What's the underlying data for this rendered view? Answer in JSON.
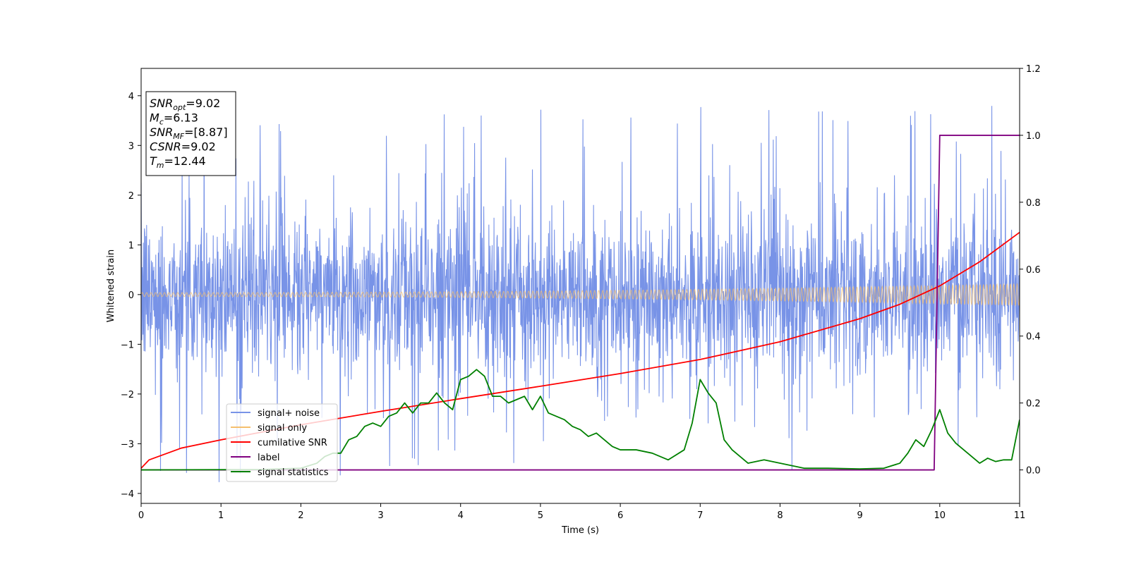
{
  "chart_data": {
    "type": "line",
    "xlabel": "Time (s)",
    "ylabel": "Whitened strain",
    "xlim": [
      0,
      11
    ],
    "ylim": [
      -4.2,
      4.55
    ],
    "y2lim": [
      -0.1,
      1.2
    ],
    "x_ticks": [
      0,
      1,
      2,
      3,
      4,
      5,
      6,
      7,
      8,
      9,
      10,
      11
    ],
    "y_ticks": [
      -4,
      -3,
      -2,
      -1,
      0,
      1,
      2,
      3,
      4
    ],
    "y2_ticks": [
      0.0,
      0.2,
      0.4,
      0.6,
      0.8,
      1.0,
      1.2
    ],
    "grid": false,
    "legend_position": "lower-left",
    "annotation": {
      "lines": [
        {
          "sym": "SNR",
          "sub": "opt",
          "value": "=9.02"
        },
        {
          "sym": "M",
          "sub": "c",
          "value": "=6.13"
        },
        {
          "sym": "SNR",
          "sub": "MF",
          "value": "=[8.87]"
        },
        {
          "sym": "CSNR",
          "sub": "",
          "value": "=9.02"
        },
        {
          "sym": "T",
          "sub": "m",
          "value": "=12.44"
        }
      ]
    },
    "series": [
      {
        "name": "signal+ noise",
        "color": "#7893e7",
        "axis": "left",
        "kind": "noise",
        "envelope_core": 1.3,
        "spike_max": 3.8,
        "spike_min": -3.8
      },
      {
        "name": "signal only",
        "color": "#f5bf6e",
        "axis": "left",
        "kind": "chirp",
        "amplitude_start": 0.04,
        "amplitude_end": 0.22
      },
      {
        "name": "cumilative SNR",
        "color": "#ff0000",
        "axis": "right",
        "x": [
          0,
          0.1,
          0.5,
          1,
          2,
          3,
          4,
          5,
          6,
          7,
          8,
          9,
          9.5,
          10,
          10.5,
          11
        ],
        "y": [
          0.005,
          0.03,
          0.065,
          0.09,
          0.135,
          0.175,
          0.213,
          0.25,
          0.288,
          0.33,
          0.383,
          0.452,
          0.495,
          0.55,
          0.622,
          0.71
        ]
      },
      {
        "name": "label",
        "color": "#800080",
        "axis": "right",
        "x": [
          0,
          9.93,
          10.0,
          11
        ],
        "y": [
          0.0,
          0.0,
          1.0,
          1.0
        ]
      },
      {
        "name": "signal statistics",
        "color": "#008000",
        "axis": "right",
        "x": [
          0,
          1.5,
          2.0,
          2.2,
          2.3,
          2.4,
          2.5,
          2.6,
          2.7,
          2.8,
          2.9,
          3.0,
          3.1,
          3.2,
          3.3,
          3.4,
          3.5,
          3.6,
          3.7,
          3.8,
          3.9,
          4.0,
          4.1,
          4.2,
          4.3,
          4.4,
          4.5,
          4.6,
          4.7,
          4.8,
          4.9,
          5.0,
          5.1,
          5.2,
          5.3,
          5.4,
          5.5,
          5.6,
          5.7,
          5.8,
          5.9,
          6.0,
          6.2,
          6.4,
          6.6,
          6.8,
          6.9,
          7.0,
          7.1,
          7.2,
          7.3,
          7.4,
          7.5,
          7.6,
          7.8,
          8.0,
          8.3,
          8.6,
          9.0,
          9.3,
          9.5,
          9.6,
          9.7,
          9.8,
          9.9,
          10.0,
          10.1,
          10.2,
          10.3,
          10.4,
          10.5,
          10.6,
          10.7,
          10.8,
          10.9,
          11.0
        ],
        "y": [
          0.0,
          0.001,
          0.005,
          0.02,
          0.04,
          0.05,
          0.05,
          0.09,
          0.1,
          0.13,
          0.14,
          0.13,
          0.16,
          0.17,
          0.2,
          0.17,
          0.2,
          0.2,
          0.23,
          0.2,
          0.18,
          0.27,
          0.28,
          0.3,
          0.28,
          0.22,
          0.22,
          0.2,
          0.21,
          0.22,
          0.18,
          0.22,
          0.17,
          0.16,
          0.15,
          0.13,
          0.12,
          0.1,
          0.11,
          0.09,
          0.07,
          0.06,
          0.06,
          0.05,
          0.03,
          0.06,
          0.14,
          0.27,
          0.23,
          0.2,
          0.09,
          0.06,
          0.04,
          0.02,
          0.03,
          0.02,
          0.005,
          0.005,
          0.003,
          0.005,
          0.02,
          0.05,
          0.09,
          0.07,
          0.12,
          0.18,
          0.11,
          0.08,
          0.06,
          0.04,
          0.02,
          0.035,
          0.025,
          0.03,
          0.03,
          0.15
        ]
      }
    ]
  }
}
